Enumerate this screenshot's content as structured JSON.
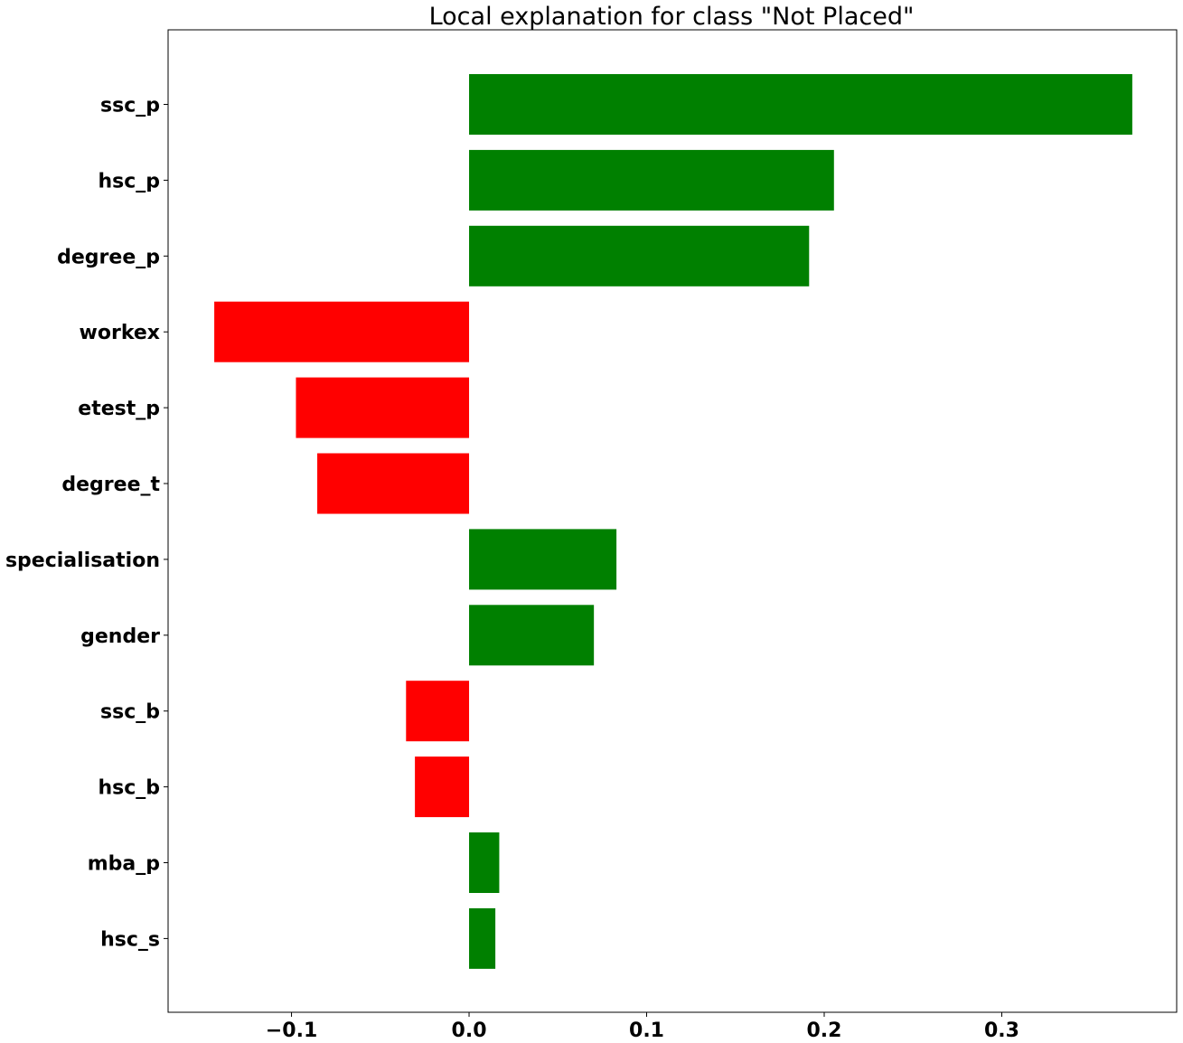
{
  "chart_data": {
    "type": "bar",
    "orientation": "horizontal",
    "title": "Local explanation for class \"Not Placed\"",
    "xlabel": "",
    "ylabel": "",
    "categories": [
      "ssc_p",
      "hsc_p",
      "degree_p",
      "workex",
      "etest_p",
      "degree_t",
      "specialisation",
      "gender",
      "ssc_b",
      "hsc_b",
      "mba_p",
      "hsc_s"
    ],
    "values": [
      0.3735,
      0.2055,
      0.1915,
      -0.1435,
      -0.0975,
      -0.0855,
      0.083,
      0.0703,
      -0.0355,
      -0.0305,
      0.017,
      0.0148
    ],
    "xlim": [
      -0.1695,
      0.3985
    ],
    "xticks": [
      -0.1,
      0.0,
      0.1,
      0.2,
      0.3
    ],
    "xtick_labels": [
      "−0.1",
      "0.0",
      "0.1",
      "0.2",
      "0.3"
    ],
    "positive_color": "#008000",
    "negative_color": "#ff0000",
    "grid": false,
    "legend": "none"
  }
}
